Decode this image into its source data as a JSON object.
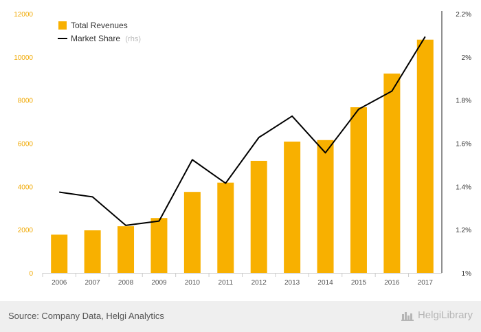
{
  "chart_data": {
    "type": "bar",
    "categories": [
      "2006",
      "2007",
      "2008",
      "2009",
      "2010",
      "2011",
      "2012",
      "2013",
      "2014",
      "2015",
      "2016",
      "2017"
    ],
    "series": [
      {
        "name": "Total Revenues",
        "type": "bar",
        "axis": "left",
        "color": "#f8b000",
        "values": [
          1770,
          1970,
          2160,
          2540,
          3750,
          4180,
          5190,
          6080,
          6150,
          7670,
          9230,
          10800
        ]
      },
      {
        "name": "Market Share",
        "type": "line",
        "axis": "right",
        "color": "#000000",
        "values": [
          1.374,
          1.352,
          1.22,
          1.24,
          1.524,
          1.415,
          1.627,
          1.726,
          1.556,
          1.758,
          1.842,
          2.094
        ]
      }
    ],
    "ylim": [
      0,
      12000
    ],
    "yticks": [
      "0",
      "2000",
      "4000",
      "6000",
      "8000",
      "10000",
      "12000"
    ],
    "y2lim": [
      1.0,
      2.2
    ],
    "y2ticks": [
      "1%",
      "1.2%",
      "1.4%",
      "1.6%",
      "1.8%",
      "2%",
      "2.2%"
    ],
    "legend": {
      "position": "top-left",
      "series_labels": [
        "Total Revenues",
        "Market Share"
      ],
      "suffix": "(rhs)"
    },
    "grid": false
  },
  "footer": {
    "source": "Source: Company Data, Helgi Analytics",
    "brand": "HelgiLibrary"
  }
}
